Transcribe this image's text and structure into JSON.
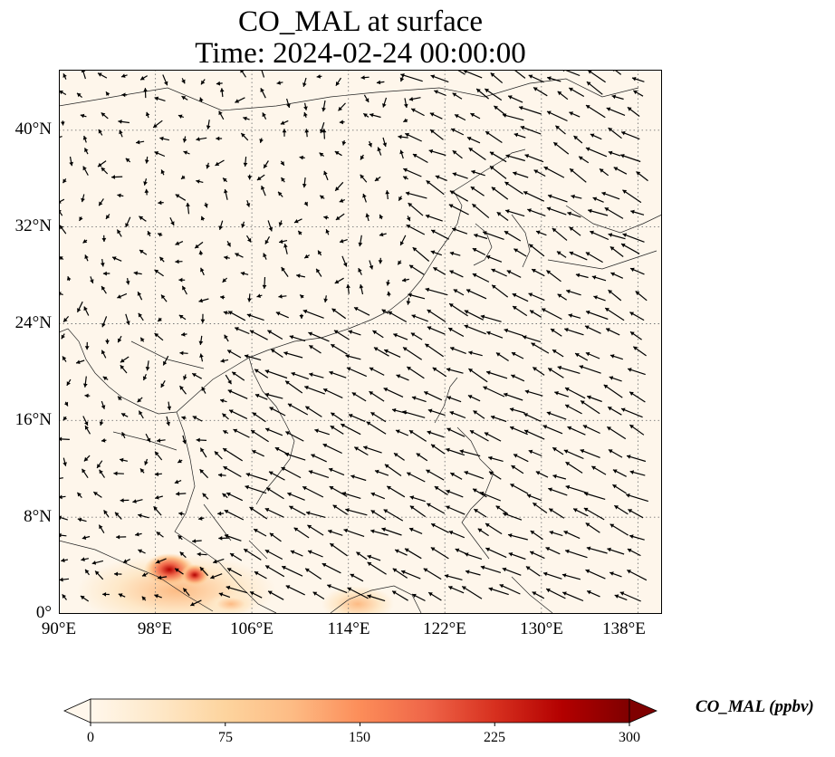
{
  "title": {
    "line1": "CO_MAL at surface",
    "line2": "Time: 2024-02-24 00:00:00"
  },
  "map": {
    "extent": {
      "lon": [
        90,
        140
      ],
      "lat": [
        0,
        45
      ]
    },
    "lat_ticks": [
      "40°N",
      "32°N",
      "24°N",
      "16°N",
      "8°N",
      "0°"
    ],
    "lon_ticks": [
      "90°E",
      "98°E",
      "106°E",
      "114°E",
      "122°E",
      "130°E",
      "138°E"
    ],
    "background_color": "#fef6eb",
    "gridlines": "dotted",
    "vector_color": "#000000"
  },
  "colorbar": {
    "label": "CO_MAL (ppbv)",
    "ticks": [
      "0",
      "75",
      "150",
      "225",
      "300"
    ],
    "range": [
      0,
      300
    ],
    "colormap": "OrRd",
    "extend": "both",
    "colors": [
      "#fff7ec",
      "#fee8c8",
      "#fdd49e",
      "#fdbb84",
      "#fc8d59",
      "#ef6548",
      "#d7301f",
      "#b30000",
      "#7f0000"
    ]
  }
}
